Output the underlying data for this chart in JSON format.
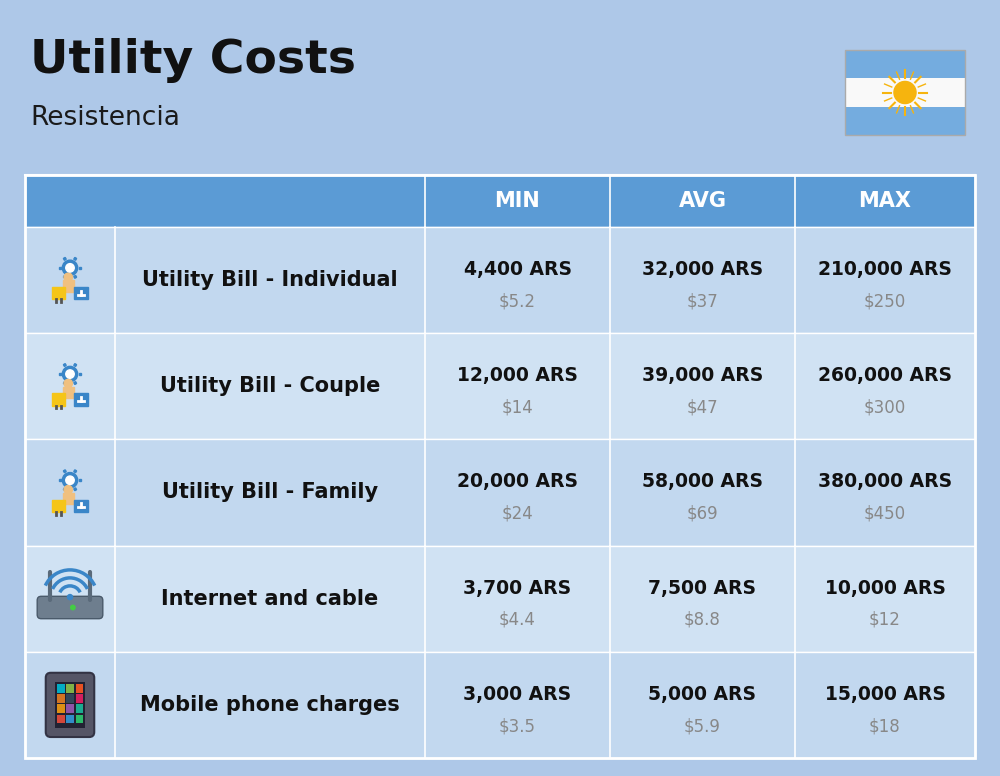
{
  "title": "Utility Costs",
  "subtitle": "Resistencia",
  "background_color": "#aec8e8",
  "header_bg_color": "#5b9bd5",
  "header_text_color": "#ffffff",
  "row_bg_color_1": "#c2d8ef",
  "row_bg_color_2": "#d0e2f3",
  "col_headers": [
    "MIN",
    "AVG",
    "MAX"
  ],
  "rows": [
    {
      "label": "Utility Bill - Individual",
      "icon_type": "utility",
      "min_ars": "4,400 ARS",
      "min_usd": "$5.2",
      "avg_ars": "32,000 ARS",
      "avg_usd": "$37",
      "max_ars": "210,000 ARS",
      "max_usd": "$250"
    },
    {
      "label": "Utility Bill - Couple",
      "icon_type": "utility",
      "min_ars": "12,000 ARS",
      "min_usd": "$14",
      "avg_ars": "39,000 ARS",
      "avg_usd": "$47",
      "max_ars": "260,000 ARS",
      "max_usd": "$300"
    },
    {
      "label": "Utility Bill - Family",
      "icon_type": "utility",
      "min_ars": "20,000 ARS",
      "min_usd": "$24",
      "avg_ars": "58,000 ARS",
      "avg_usd": "$69",
      "max_ars": "380,000 ARS",
      "max_usd": "$450"
    },
    {
      "label": "Internet and cable",
      "icon_type": "internet",
      "min_ars": "3,700 ARS",
      "min_usd": "$4.4",
      "avg_ars": "7,500 ARS",
      "avg_usd": "$8.8",
      "max_ars": "10,000 ARS",
      "max_usd": "$12"
    },
    {
      "label": "Mobile phone charges",
      "icon_type": "mobile",
      "min_ars": "3,000 ARS",
      "min_usd": "$3.5",
      "avg_ars": "5,000 ARS",
      "avg_usd": "$5.9",
      "max_ars": "15,000 ARS",
      "max_usd": "$18"
    }
  ],
  "flag_colors": [
    "#74acdf",
    "#ffffff",
    "#74acdf"
  ],
  "flag_sun_color": "#f6b40e"
}
